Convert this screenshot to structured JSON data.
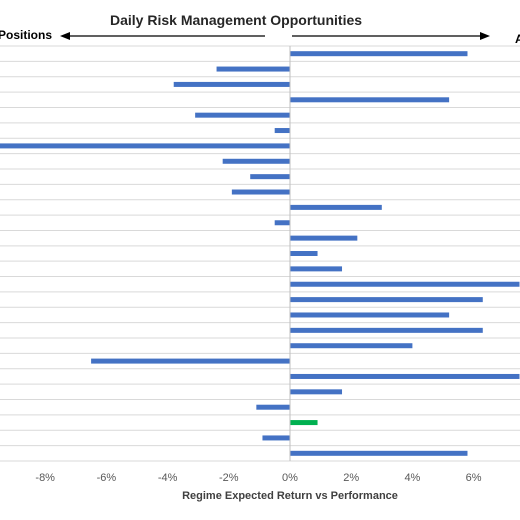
{
  "chart_data": {
    "type": "bar",
    "orientation": "horizontal",
    "title": "Daily Risk Management Opportunities",
    "left_label": "Positions",
    "right_label": "A",
    "xlabel": "Regime Expected Return vs Performance",
    "ylabel": "",
    "xlim": [
      -9.5,
      7.5
    ],
    "xticks": [
      -8,
      -6,
      -4,
      -2,
      0,
      2,
      4,
      6
    ],
    "xtick_labels": [
      "-8%",
      "-6%",
      "-4%",
      "-2%",
      "0%",
      "2%",
      "4%",
      "6%"
    ],
    "grid": true,
    "colors": {
      "default": "#4472C4",
      "highlight": "#00B050",
      "grid": "#D9D9D9"
    },
    "values": [
      5.8,
      -2.4,
      -3.8,
      5.2,
      -3.1,
      -0.5,
      -9.5,
      -2.2,
      -1.3,
      -1.9,
      3.0,
      -0.5,
      2.2,
      0.9,
      1.7,
      7.5,
      6.3,
      5.2,
      6.3,
      4.0,
      -6.5,
      7.5,
      1.7,
      -1.1,
      0.9,
      -0.9,
      5.8
    ],
    "highlight_index": 24
  }
}
